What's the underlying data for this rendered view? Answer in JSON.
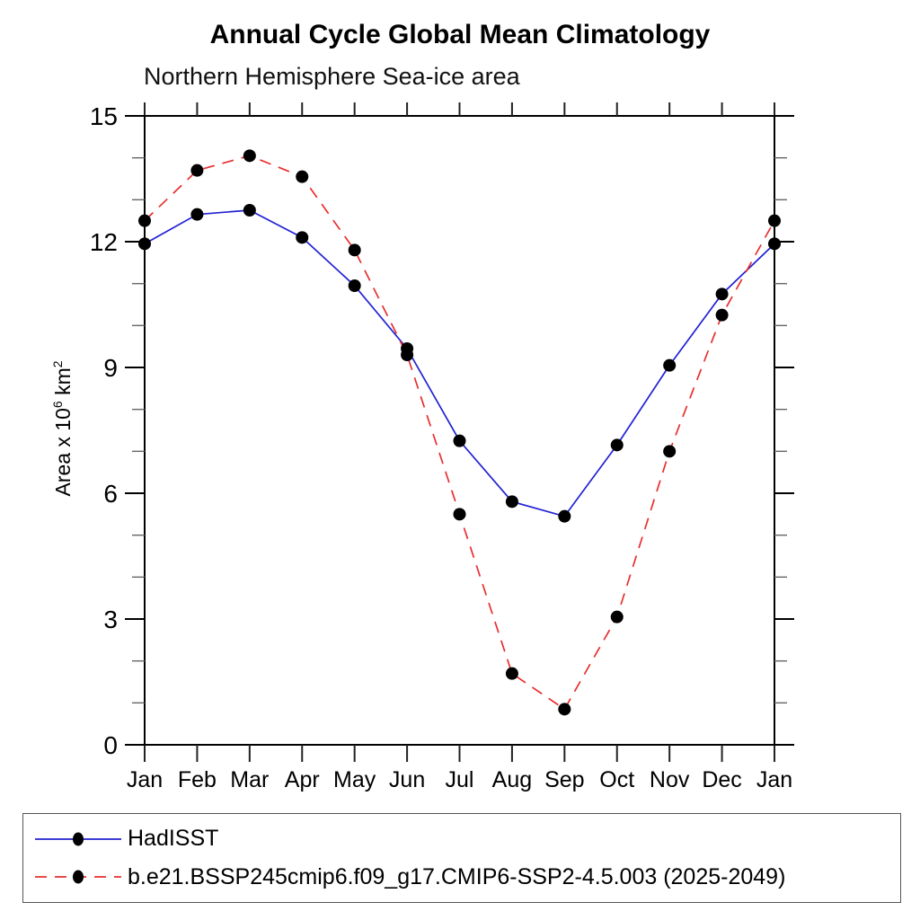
{
  "chart_data": {
    "type": "line",
    "title": "Annual Cycle Global Mean Climatology",
    "subtitle": "Northern Hemisphere Sea-ice area",
    "y_axis_label": {
      "text": "Area x 10^6 km^2",
      "base1": "Area x 10",
      "sup1": "6",
      "base2": " km",
      "sup2": "2"
    },
    "categories": [
      "Jan",
      "Feb",
      "Mar",
      "Apr",
      "May",
      "Jun",
      "Jul",
      "Aug",
      "Sep",
      "Oct",
      "Nov",
      "Dec",
      "Jan"
    ],
    "ylim": [
      0,
      15
    ],
    "y_major_ticks": [
      0,
      3,
      6,
      9,
      12,
      15
    ],
    "y_minor_step": 1,
    "grid": false,
    "legend_position": "bottom-left-box",
    "axis_color": "#000000",
    "minor_tick_color": "#666666",
    "marker_color": "#000000",
    "series": [
      {
        "name": "HadISST",
        "style": "solid",
        "color": "#2222d3",
        "marker": "black-dot",
        "values": [
          11.95,
          12.65,
          12.75,
          12.1,
          10.95,
          9.45,
          7.25,
          5.8,
          5.45,
          7.15,
          9.05,
          10.75,
          11.95
        ]
      },
      {
        "name": "b.e21.BSSP245cmip6.f09_g17.CMIP6-SSP2-4.5.003 (2025-2049)",
        "style": "dashed",
        "color": "#e82e2e",
        "marker": "black-dot",
        "values": [
          12.5,
          13.7,
          14.05,
          13.55,
          11.8,
          9.3,
          5.5,
          1.7,
          0.85,
          3.05,
          7.0,
          10.25,
          12.5
        ]
      }
    ]
  }
}
